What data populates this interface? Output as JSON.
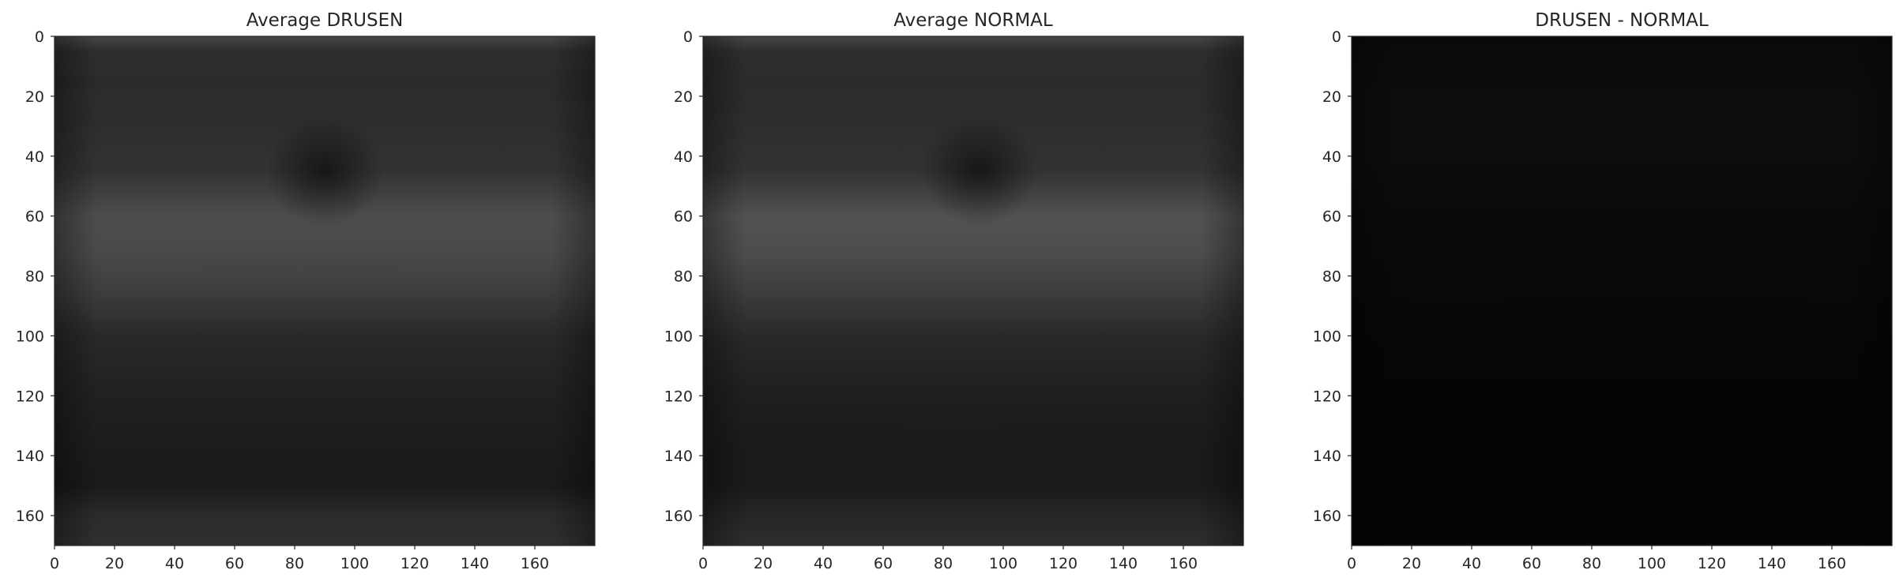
{
  "chart_data": [
    {
      "type": "heatmap",
      "title": "Average DRUSEN",
      "colormap": "gray",
      "xlim": [
        0,
        180
      ],
      "ylim": [
        170,
        0
      ],
      "x_ticks": [
        0,
        20,
        40,
        60,
        80,
        100,
        120,
        140,
        160
      ],
      "y_ticks": [
        0,
        20,
        40,
        60,
        80,
        100,
        120,
        140,
        160
      ],
      "grid": false,
      "intensity_profile": {
        "rows": [
          0,
          5,
          15,
          30,
          45,
          60,
          72,
          85,
          100,
          120,
          140,
          150,
          160,
          170
        ],
        "gray_levels": [
          0.28,
          0.18,
          0.17,
          0.18,
          0.2,
          0.3,
          0.29,
          0.24,
          0.16,
          0.13,
          0.11,
          0.1,
          0.17,
          0.19
        ]
      },
      "dark_center": {
        "x": 90,
        "y": 45
      }
    },
    {
      "type": "heatmap",
      "title": "Average NORMAL",
      "colormap": "gray",
      "xlim": [
        0,
        180
      ],
      "ylim": [
        170,
        0
      ],
      "x_ticks": [
        0,
        20,
        40,
        60,
        80,
        100,
        120,
        140,
        160
      ],
      "y_ticks": [
        0,
        20,
        40,
        60,
        80,
        100,
        120,
        140,
        160
      ],
      "grid": false,
      "intensity_profile": {
        "rows": [
          0,
          5,
          15,
          30,
          45,
          60,
          72,
          85,
          100,
          120,
          140,
          150,
          160,
          170
        ],
        "gray_levels": [
          0.28,
          0.18,
          0.17,
          0.18,
          0.2,
          0.32,
          0.3,
          0.24,
          0.16,
          0.12,
          0.1,
          0.1,
          0.15,
          0.18
        ]
      },
      "dark_center": {
        "x": 92,
        "y": 45
      }
    },
    {
      "type": "heatmap",
      "title": "DRUSEN - NORMAL",
      "colormap": "gray",
      "xlim": [
        0,
        180
      ],
      "ylim": [
        170,
        0
      ],
      "x_ticks": [
        0,
        20,
        40,
        60,
        80,
        100,
        120,
        140,
        160
      ],
      "y_ticks": [
        0,
        20,
        40,
        60,
        80,
        100,
        120,
        140,
        160
      ],
      "grid": false,
      "intensity_profile": {
        "rows": [
          0,
          20,
          40,
          60,
          80,
          120,
          170
        ],
        "gray_levels": [
          0.04,
          0.05,
          0.05,
          0.04,
          0.03,
          0.02,
          0.02
        ]
      }
    }
  ]
}
